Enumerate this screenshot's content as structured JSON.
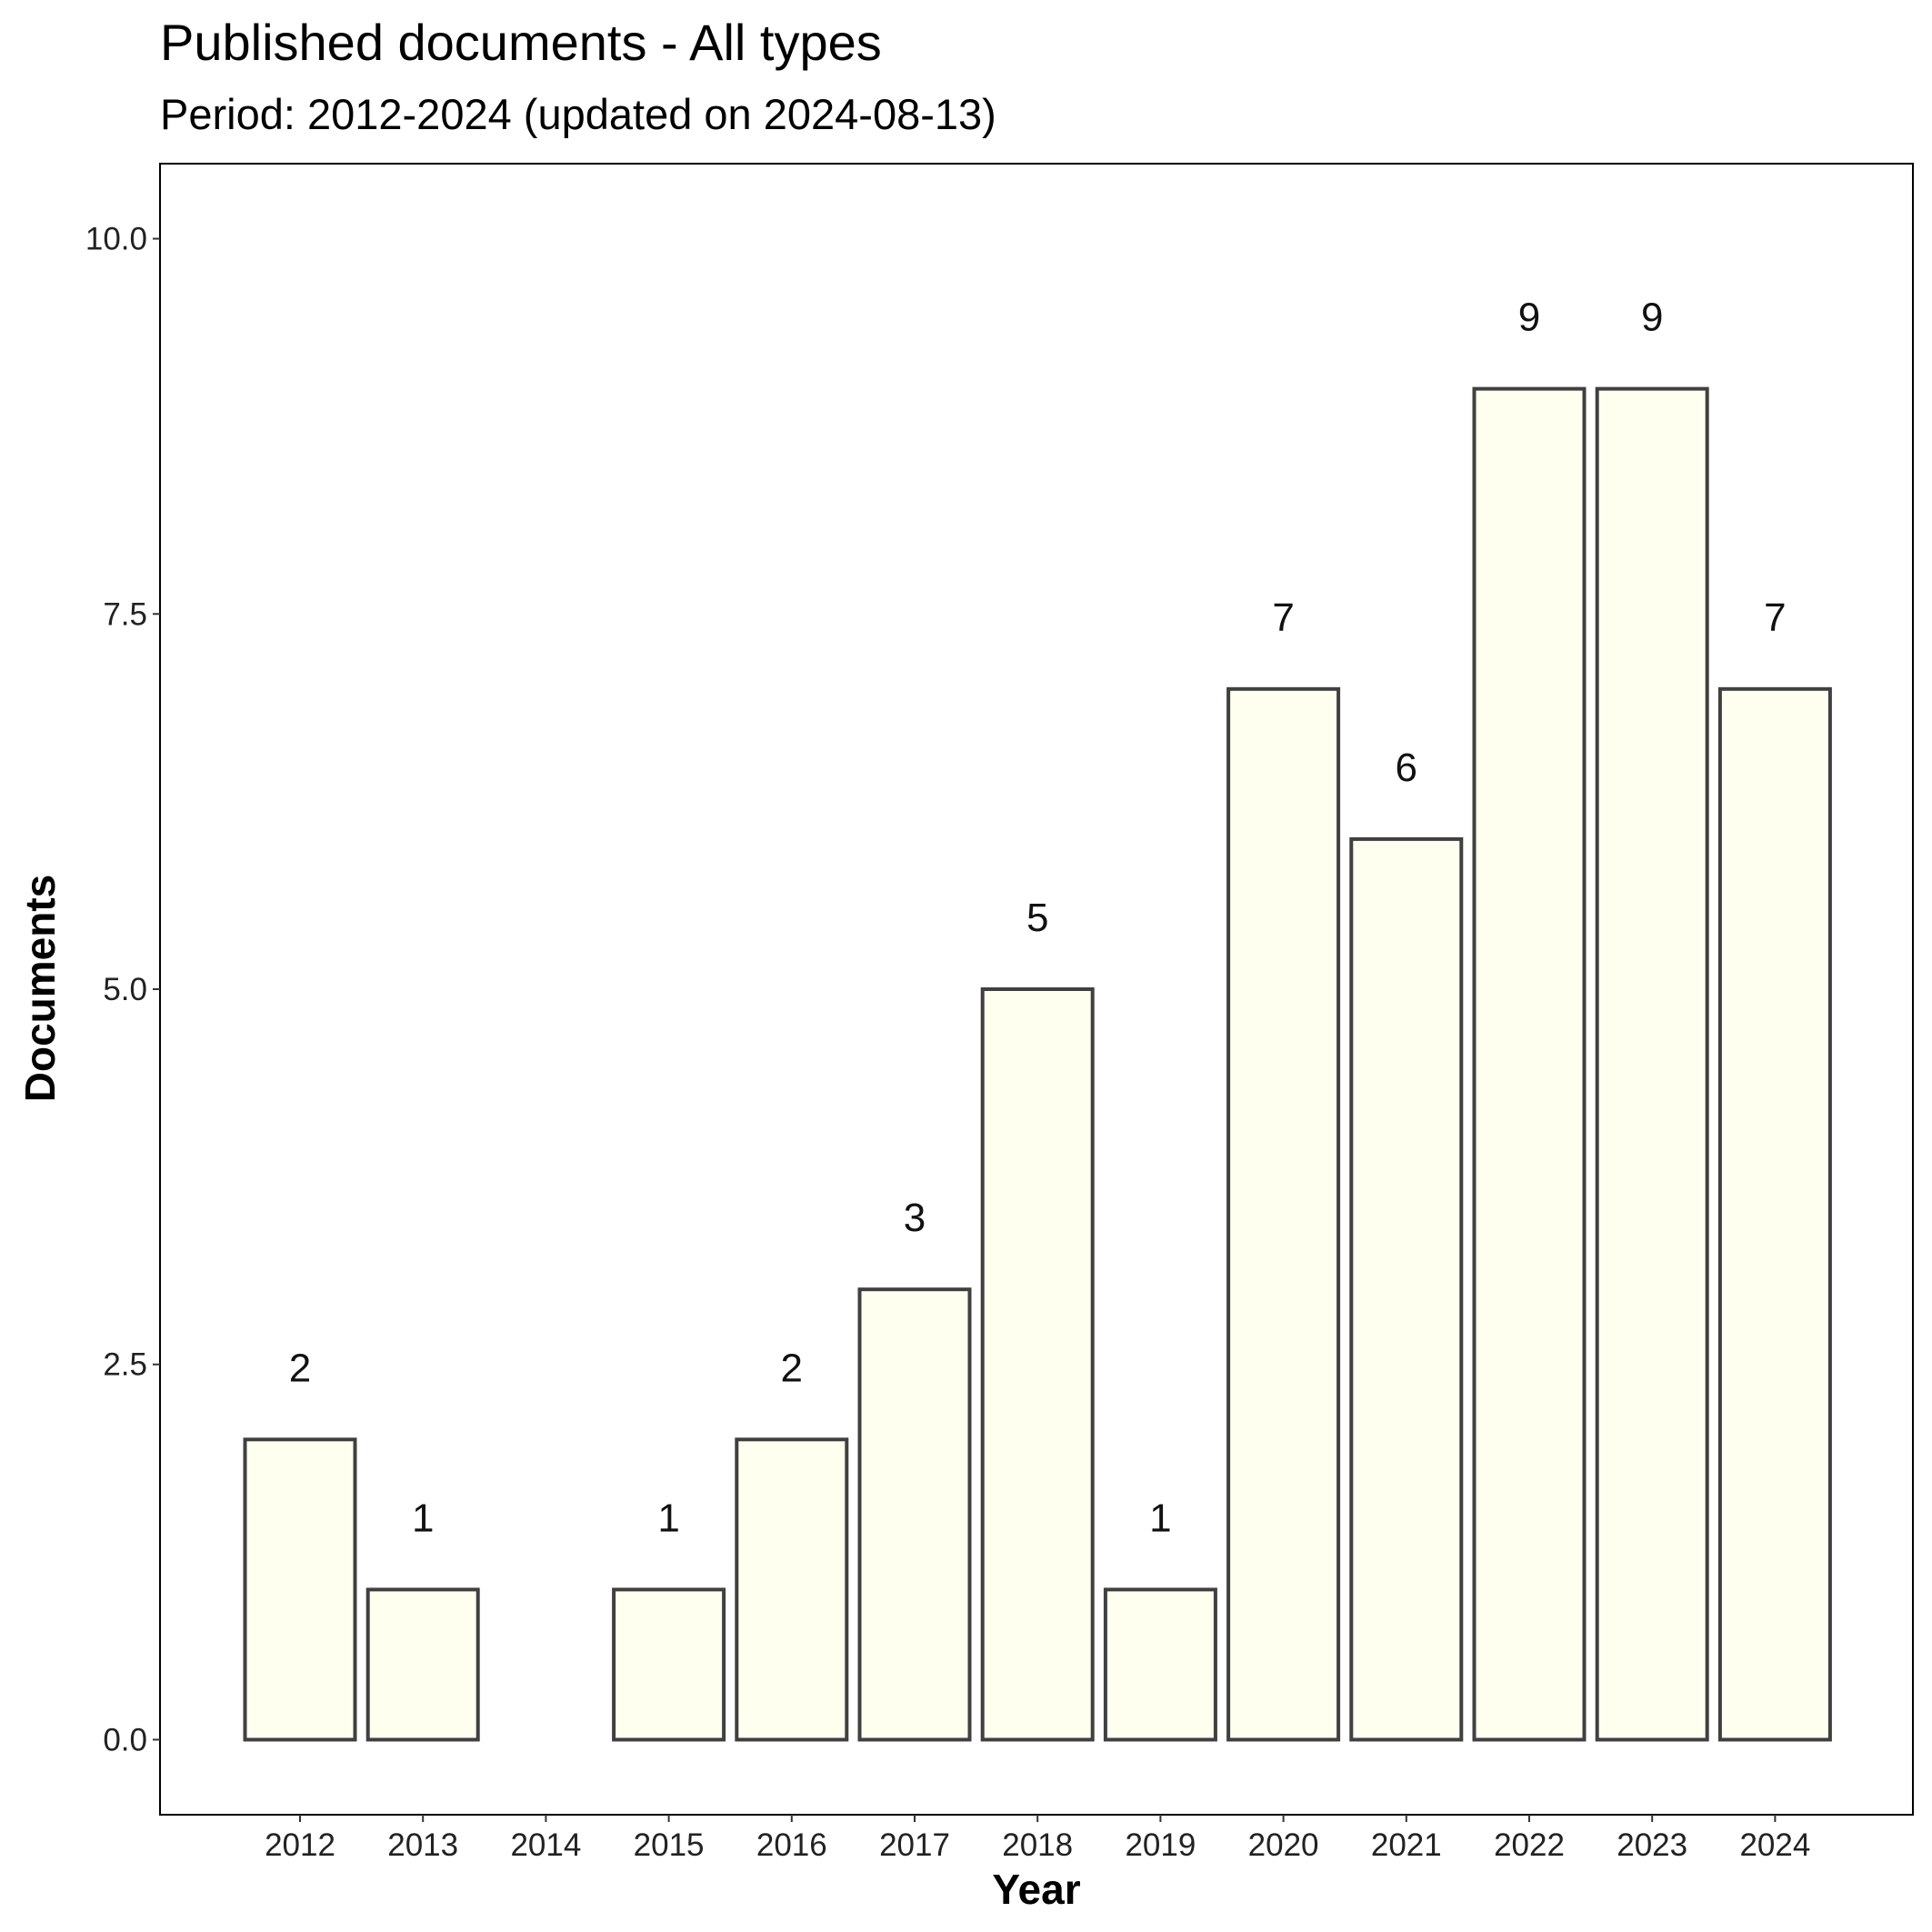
{
  "chart_data": {
    "type": "bar",
    "title": "Published documents - All types",
    "subtitle": "Period: 2012-2024 (updated on 2024-08-13)",
    "xlabel": "Year",
    "ylabel": "Documents",
    "categories": [
      "2012",
      "2013",
      "2014",
      "2015",
      "2016",
      "2017",
      "2018",
      "2019",
      "2020",
      "2021",
      "2022",
      "2023",
      "2024"
    ],
    "values": [
      2,
      1,
      0,
      1,
      2,
      3,
      5,
      1,
      7,
      6,
      9,
      9,
      7
    ],
    "data_labels": [
      "2",
      "1",
      "",
      "1",
      "2",
      "3",
      "5",
      "1",
      "7",
      "6",
      "9",
      "9",
      "7"
    ],
    "ylim": [
      -0.5,
      10.5
    ],
    "yticks": [
      0,
      2.5,
      5,
      7.5,
      10
    ],
    "ytick_labels": [
      "0.0",
      "2.5",
      "5.0",
      "7.5",
      "10.0"
    ],
    "grid": false,
    "colors": {
      "bar_fill": "#FFFFF0",
      "bar_stroke": "#404040",
      "frame": "#000000"
    }
  }
}
